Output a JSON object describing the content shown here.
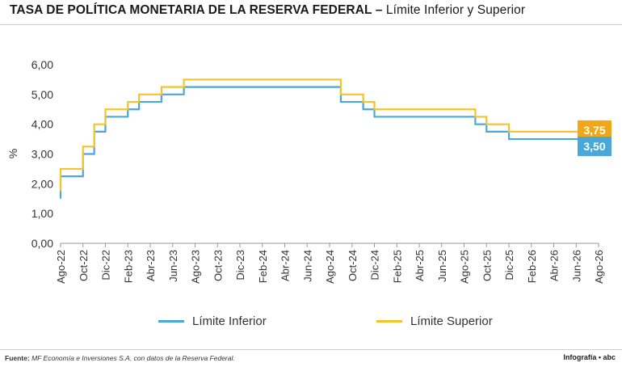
{
  "header": {
    "title": "TASA DE POLÍTICA MONETARIA DE LA RESERVA FEDERAL –",
    "subtitle": "Límite Inferior y Superior"
  },
  "chart_data": {
    "type": "line",
    "ylabel": "%",
    "ylim": [
      0,
      6
    ],
    "yticks": [
      "0,00",
      "1,00",
      "2,00",
      "3,00",
      "4,00",
      "5,00",
      "6,00"
    ],
    "xticks": [
      "Ago-22",
      "Oct-22",
      "Dic-22",
      "Feb-23",
      "Abr-23",
      "Jun-23",
      "Ago-23",
      "Oct-23",
      "Dic-23",
      "Feb-24",
      "Abr-24",
      "Jun-24",
      "Ago-24",
      "Oct-24",
      "Dic-24",
      "Feb-25",
      "Abr-25",
      "Jun-25",
      "Ago-25",
      "Oct-25",
      "Dic-25",
      "Feb-26",
      "Abr-26",
      "Jun-26",
      "Ago-26"
    ],
    "xrange": [
      "2022-08",
      "2026-08"
    ],
    "grid": false,
    "legend_position": "bottom",
    "series": [
      {
        "name": "Límite Inferior",
        "color": "#4aa8d8",
        "end_label": "3,50",
        "steps": [
          {
            "x": "2022-08",
            "y": 1.5
          },
          {
            "x": "2022-08",
            "y": 2.25
          },
          {
            "x": "2022-09",
            "y": 2.25
          },
          {
            "x": "2022-10",
            "y": 3.0
          },
          {
            "x": "2022-11",
            "y": 3.75
          },
          {
            "x": "2022-12",
            "y": 4.25
          },
          {
            "x": "2023-02",
            "y": 4.5
          },
          {
            "x": "2023-03",
            "y": 4.75
          },
          {
            "x": "2023-05",
            "y": 5.0
          },
          {
            "x": "2023-07",
            "y": 5.25
          },
          {
            "x": "2024-09",
            "y": 4.75
          },
          {
            "x": "2024-11",
            "y": 4.5
          },
          {
            "x": "2024-12",
            "y": 4.25
          },
          {
            "x": "2025-09",
            "y": 4.0
          },
          {
            "x": "2025-10",
            "y": 3.75
          },
          {
            "x": "2025-12",
            "y": 3.5
          },
          {
            "x": "2026-07",
            "y": 3.5
          }
        ]
      },
      {
        "name": "Límite Superior",
        "color": "#f5c42c",
        "end_label": "3,75",
        "steps": [
          {
            "x": "2022-08",
            "y": 1.75
          },
          {
            "x": "2022-08",
            "y": 2.5
          },
          {
            "x": "2022-09",
            "y": 2.5
          },
          {
            "x": "2022-10",
            "y": 3.25
          },
          {
            "x": "2022-11",
            "y": 4.0
          },
          {
            "x": "2022-12",
            "y": 4.5
          },
          {
            "x": "2023-02",
            "y": 4.75
          },
          {
            "x": "2023-03",
            "y": 5.0
          },
          {
            "x": "2023-05",
            "y": 5.25
          },
          {
            "x": "2023-07",
            "y": 5.5
          },
          {
            "x": "2024-09",
            "y": 5.0
          },
          {
            "x": "2024-11",
            "y": 4.75
          },
          {
            "x": "2024-12",
            "y": 4.5
          },
          {
            "x": "2025-09",
            "y": 4.25
          },
          {
            "x": "2025-10",
            "y": 4.0
          },
          {
            "x": "2025-12",
            "y": 3.75
          },
          {
            "x": "2026-07",
            "y": 3.75
          }
        ]
      }
    ],
    "end_label_colors": {
      "Límite Inferior": "#4aa8d8",
      "Límite Superior": "#f0a818"
    }
  },
  "footer": {
    "source_label": "Fuente:",
    "source_text": "MF Economía e Inversiones S.A. con datos de la Reserva Federal.",
    "credit": "Infografía • abc"
  }
}
